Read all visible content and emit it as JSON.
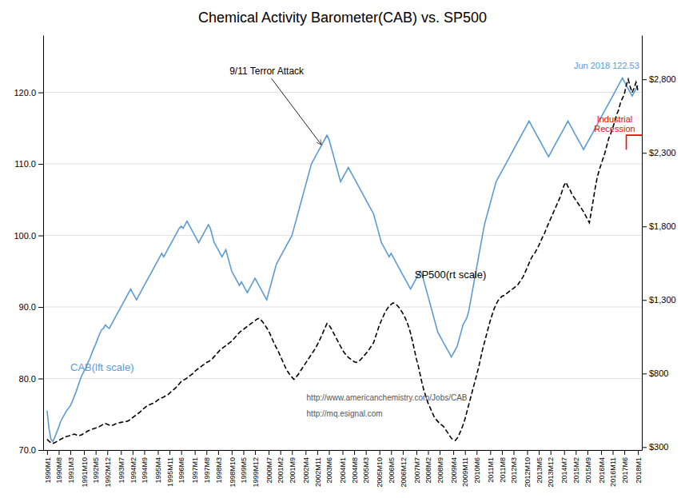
{
  "chart_data": {
    "type": "line",
    "title": "Chemical Activity Barometer(CAB) vs. SP500",
    "categories": [
      "1990M1",
      null,
      null,
      null,
      null,
      null,
      "1990M8",
      null,
      null,
      null,
      null,
      null,
      "1991M3",
      null,
      null,
      null,
      null,
      null,
      null,
      "1991M10",
      null,
      null,
      null,
      null,
      null,
      "1992M5",
      null,
      null,
      null,
      null,
      null,
      "1992M12",
      null,
      null,
      null,
      null,
      null,
      null,
      "1993M7",
      null,
      null,
      null,
      null,
      null,
      "1994M2",
      null,
      null,
      null,
      null,
      null,
      "1994M9",
      null,
      null,
      null,
      null,
      null,
      null,
      "1995M4",
      null,
      null,
      null,
      null,
      null,
      "1995M11",
      null,
      null,
      null,
      null,
      null,
      "1996M6",
      null,
      null,
      null,
      null,
      null,
      null,
      "1997M1",
      null,
      null,
      null,
      null,
      null,
      "1997M8",
      null,
      null,
      null,
      null,
      null,
      "1998M3",
      null,
      null,
      null,
      null,
      null,
      null,
      "1998M10",
      null,
      null,
      null,
      null,
      null,
      "1999M5",
      null,
      null,
      null,
      null,
      null,
      "1999M12",
      null,
      null,
      null,
      null,
      null,
      null,
      "2000M7",
      null,
      null,
      null,
      null,
      null,
      "2001M2",
      null,
      null,
      null,
      null,
      null,
      "2001M9",
      null,
      null,
      null,
      null,
      null,
      null,
      "2002M4",
      null,
      null,
      null,
      null,
      null,
      "2002M11",
      null,
      null,
      null,
      null,
      null,
      "2003M6",
      null,
      null,
      null,
      null,
      null,
      null,
      "2004M1",
      null,
      null,
      null,
      null,
      null,
      "2004M8",
      null,
      null,
      null,
      null,
      null,
      "2005M3",
      null,
      null,
      null,
      null,
      null,
      null,
      "2005M10",
      null,
      null,
      null,
      null,
      null,
      "2006M5",
      null,
      null,
      null,
      null,
      null,
      "2006M12",
      null,
      null,
      null,
      null,
      null,
      null,
      "2007M7",
      null,
      null,
      null,
      null,
      null,
      "2008M2",
      null,
      null,
      null,
      null,
      null,
      "2008M9",
      null,
      null,
      null,
      null,
      null,
      null,
      "2009M4",
      null,
      null,
      null,
      null,
      null,
      "2009M11",
      null,
      null,
      null,
      null,
      null,
      "2010M6",
      null,
      null,
      null,
      null,
      null,
      null,
      "2011M1",
      null,
      null,
      null,
      null,
      null,
      "2011M8",
      null,
      null,
      null,
      null,
      null,
      "2012M3",
      null,
      null,
      null,
      null,
      null,
      null,
      "2012M10",
      null,
      null,
      null,
      null,
      null,
      "2013M5",
      null,
      null,
      null,
      null,
      null,
      "2013M12",
      null,
      null,
      null,
      null,
      null,
      null,
      "2014M7",
      null,
      null,
      null,
      null,
      null,
      "2015M2",
      null,
      null,
      null,
      null,
      null,
      "2015M9",
      null,
      null,
      null,
      null,
      null,
      null,
      "2016M4",
      null,
      null,
      null,
      null,
      null,
      "2016M11",
      null,
      null,
      null,
      null,
      null,
      "2017M6",
      null,
      null,
      null,
      null,
      null,
      null,
      "2018M1"
    ],
    "series": [
      {
        "name": "CAB(lft scale)",
        "color": "#5b9bd5",
        "line_style": "solid",
        "values": [
          75.5,
          73.0,
          71.5,
          71.2,
          71.8,
          72.5,
          73.2,
          74.0,
          74.5,
          75.0,
          75.5,
          75.8,
          76.2,
          76.8,
          77.5,
          78.2,
          79.0,
          79.8,
          80.5,
          81.0,
          81.5,
          82.2,
          82.8,
          83.5,
          84.2,
          84.8,
          85.5,
          86.2,
          86.8,
          87.0,
          87.5,
          87.2,
          87.0,
          87.5,
          88.0,
          88.5,
          89.0,
          89.5,
          90.0,
          90.5,
          91.0,
          91.5,
          92.0,
          92.5,
          92.0,
          91.5,
          91.0,
          91.5,
          92.0,
          92.5,
          93.0,
          93.5,
          94.0,
          94.5,
          95.0,
          95.5,
          96.0,
          96.5,
          97.0,
          97.5,
          97.0,
          97.5,
          98.0,
          98.5,
          99.0,
          99.5,
          100.0,
          100.5,
          101.0,
          101.3,
          101.0,
          101.5,
          102.0,
          101.5,
          101.0,
          100.5,
          100.0,
          99.5,
          99.0,
          99.5,
          100.0,
          100.5,
          101.0,
          101.5,
          101.0,
          100.0,
          99.0,
          98.5,
          98.0,
          97.5,
          97.0,
          97.5,
          98.0,
          97.0,
          96.0,
          95.0,
          94.5,
          94.0,
          93.5,
          93.0,
          93.5,
          93.0,
          92.5,
          92.0,
          92.5,
          93.0,
          93.5,
          94.0,
          93.5,
          93.0,
          92.5,
          92.0,
          91.5,
          91.0,
          92.0,
          93.0,
          94.0,
          95.0,
          96.0,
          96.5,
          97.0,
          97.5,
          98.0,
          98.5,
          99.0,
          99.5,
          100.0,
          101.0,
          102.0,
          103.0,
          104.0,
          105.0,
          106.0,
          107.0,
          108.0,
          109.0,
          110.0,
          110.5,
          111.0,
          111.5,
          112.0,
          112.5,
          113.0,
          113.5,
          114.0,
          113.5,
          112.5,
          111.5,
          110.5,
          109.5,
          108.5,
          107.5,
          108.0,
          108.5,
          109.0,
          109.5,
          109.0,
          108.5,
          108.0,
          107.5,
          107.0,
          106.5,
          106.0,
          105.5,
          105.0,
          104.5,
          104.0,
          103.5,
          103.0,
          102.0,
          101.0,
          100.0,
          99.0,
          98.5,
          98.0,
          97.5,
          97.0,
          97.5,
          97.0,
          96.5,
          96.0,
          95.5,
          95.0,
          94.5,
          94.0,
          93.5,
          93.0,
          92.5,
          93.0,
          93.5,
          94.0,
          94.5,
          95.0,
          94.5,
          93.5,
          92.5,
          91.5,
          90.5,
          89.5,
          88.5,
          87.5,
          86.5,
          86.0,
          85.5,
          85.0,
          84.5,
          84.0,
          83.5,
          83.0,
          83.5,
          84.0,
          84.5,
          85.5,
          86.5,
          87.5,
          88.0,
          88.5,
          89.5,
          91.0,
          92.5,
          94.0,
          95.5,
          97.0,
          98.5,
          100.0,
          101.5,
          102.5,
          103.5,
          104.5,
          105.5,
          106.5,
          107.5,
          108.0,
          108.5,
          109.0,
          109.5,
          110.0,
          110.5,
          111.0,
          111.5,
          112.0,
          112.5,
          113.0,
          113.5,
          114.0,
          114.5,
          115.0,
          115.5,
          116.0,
          115.5,
          115.0,
          114.5,
          114.0,
          113.5,
          113.0,
          112.5,
          112.0,
          111.5,
          111.0,
          111.5,
          112.0,
          112.5,
          113.0,
          113.5,
          114.0,
          114.5,
          115.0,
          115.5,
          116.0,
          115.5,
          115.0,
          114.5,
          114.0,
          113.5,
          113.0,
          112.5,
          112.0,
          112.5,
          113.0,
          113.5,
          114.0,
          114.5,
          115.0,
          115.5,
          116.0,
          116.5,
          117.0,
          117.5,
          118.0,
          118.5,
          119.0,
          119.5,
          120.0,
          120.5,
          121.0,
          121.5,
          122.0,
          121.5,
          121.0,
          120.5,
          120.0,
          119.5,
          120.0,
          120.5,
          121.0
        ]
      },
      {
        "name": "SP500(rt scale)",
        "color": "#000000",
        "line_style": "dashed",
        "axis": "y2",
        "values": [
          353,
          340,
          330,
          325,
          330,
          338,
          345,
          353,
          360,
          368,
          372,
          375,
          380,
          385,
          388,
          383,
          378,
          380,
          385,
          395,
          400,
          410,
          415,
          420,
          425,
          430,
          435,
          440,
          448,
          455,
          460,
          455,
          450,
          445,
          450,
          457,
          460,
          465,
          468,
          470,
          472,
          475,
          480,
          490,
          500,
          510,
          520,
          530,
          540,
          555,
          565,
          575,
          585,
          590,
          595,
          600,
          610,
          620,
          628,
          635,
          640,
          648,
          655,
          665,
          680,
          690,
          700,
          715,
          730,
          745,
          755,
          760,
          770,
          780,
          790,
          800,
          815,
          825,
          835,
          845,
          855,
          865,
          875,
          880,
          890,
          900,
          915,
          930,
          945,
          960,
          970,
          980,
          990,
          1000,
          1010,
          1020,
          1035,
          1050,
          1065,
          1080,
          1090,
          1100,
          1110,
          1120,
          1130,
          1140,
          1150,
          1160,
          1170,
          1175,
          1165,
          1150,
          1130,
          1110,
          1090,
          1060,
          1030,
          1000,
          975,
          950,
          920,
          890,
          860,
          830,
          810,
          790,
          775,
          760,
          775,
          790,
          810,
          830,
          850,
          870,
          890,
          910,
          930,
          950,
          970,
          995,
          1020,
          1050,
          1080,
          1110,
          1140,
          1130,
          1110,
          1085,
          1060,
          1035,
          1010,
          985,
          960,
          940,
          925,
          910,
          900,
          890,
          880,
          875,
          880,
          890,
          905,
          920,
          935,
          950,
          970,
          990,
          1010,
          1050,
          1090,
          1130,
          1160,
          1190,
          1220,
          1240,
          1260,
          1270,
          1280,
          1275,
          1265,
          1250,
          1230,
          1210,
          1185,
          1155,
          1120,
          1075,
          1020,
          960,
          900,
          850,
          790,
          730,
          680,
          640,
          600,
          570,
          540,
          510,
          490,
          475,
          460,
          450,
          440,
          420,
          400,
          380,
          360,
          350,
          345,
          360,
          385,
          415,
          450,
          490,
          540,
          590,
          640,
          690,
          740,
          790,
          840,
          900,
          960,
          1010,
          1060,
          1110,
          1160,
          1200,
          1240,
          1270,
          1295,
          1310,
          1325,
          1330,
          1340,
          1350,
          1360,
          1370,
          1380,
          1390,
          1400,
          1420,
          1440,
          1460,
          1490,
          1520,
          1550,
          1580,
          1605,
          1620,
          1645,
          1670,
          1700,
          1730,
          1755,
          1790,
          1820,
          1850,
          1880,
          1910,
          1940,
          1970,
          2000,
          2040,
          2080,
          2100,
          2070,
          2050,
          2020,
          2000,
          1980,
          1960,
          1940,
          1920,
          1900,
          1875,
          1850,
          1825,
          1900,
          1980,
          2060,
          2130,
          2180,
          2220,
          2260,
          2300,
          2350,
          2400,
          2430,
          2470,
          2510,
          2560,
          2590,
          2640,
          2670,
          2700,
          2760,
          2800,
          2750,
          2710,
          2740,
          2780,
          2720
        ]
      }
    ],
    "ylim": [
      70.0,
      128.0
    ],
    "yticks": [
      {
        "value": 70.0,
        "label": "70.0"
      },
      {
        "value": 80.0,
        "label": "80.0"
      },
      {
        "value": 90.0,
        "label": "90.0"
      },
      {
        "value": 100.0,
        "label": "100.0"
      },
      {
        "value": 110.0,
        "label": "110.0"
      },
      {
        "value": 120.0,
        "label": "120.0"
      }
    ],
    "y2lim": [
      280,
      3100
    ],
    "y2ticks": [
      {
        "value": 300,
        "label": "$300"
      },
      {
        "value": 800,
        "label": "$800"
      },
      {
        "value": 1300,
        "label": "$1,300"
      },
      {
        "value": 1800,
        "label": "$1,800"
      },
      {
        "value": 2300,
        "label": "$2,300"
      },
      {
        "value": 2800,
        "label": "$2,800"
      }
    ],
    "grid": true,
    "annotations": [
      "9/11 Terror Attack",
      "Jun 2018 122.53",
      "Industrial\nRecession",
      "http://www.americanchemistry.com/Jobs/CAB",
      "http://mq.esignal.com"
    ]
  }
}
